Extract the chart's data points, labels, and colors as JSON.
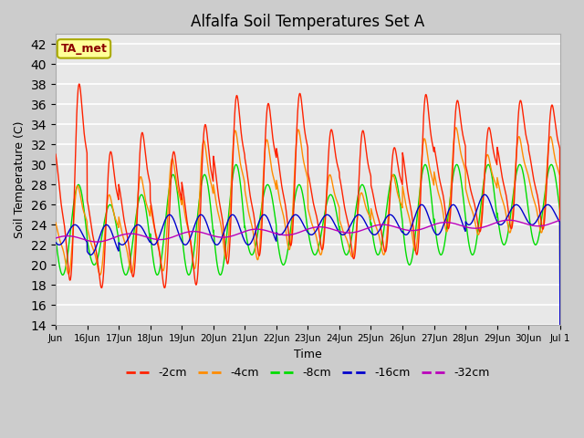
{
  "title": "Alfalfa Soil Temperatures Set A",
  "xlabel": "Time",
  "ylabel": "Soil Temperature (C)",
  "ylim": [
    14,
    43
  ],
  "yticks": [
    14,
    16,
    18,
    20,
    22,
    24,
    26,
    28,
    30,
    32,
    34,
    36,
    38,
    40,
    42
  ],
  "annotation": "TA_met",
  "annotation_color": "#8B0000",
  "annotation_bg": "#FFFF99",
  "annotation_edge": "#AAAA00",
  "fig_bg": "#CCCCCC",
  "plot_bg": "#E8E8E8",
  "grid_color": "#FFFFFF",
  "line_colors": {
    "-2cm": "#FF2200",
    "-4cm": "#FF8C00",
    "-8cm": "#00DD00",
    "-16cm": "#0000CC",
    "-32cm": "#BB00BB"
  },
  "legend_labels": [
    "-2cm",
    "-4cm",
    "-8cm",
    "-16cm",
    "-32cm"
  ],
  "n_days": 16,
  "spd": 144,
  "start_day": 15
}
